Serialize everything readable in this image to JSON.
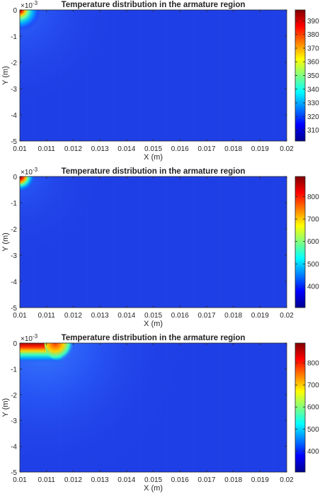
{
  "chart_data": [
    {
      "type": "heatmap",
      "title": "Temperature distribution in the armature region",
      "xlabel": "X (m)",
      "ylabel": "Y (m)",
      "y_exponent": "×10",
      "y_exponent_power": "-3",
      "xlim": [
        0.01,
        0.02
      ],
      "ylim": [
        -5,
        0
      ],
      "x_ticks": [
        "0.01",
        "0.011",
        "0.012",
        "0.013",
        "0.014",
        "0.015",
        "0.016",
        "0.017",
        "0.018",
        "0.019",
        "0.02"
      ],
      "y_ticks": [
        "0",
        "-1",
        "-2",
        "-3",
        "-4",
        "-5"
      ],
      "colorbar": {
        "range": [
          302,
          398
        ],
        "ticks": [
          "310",
          "320",
          "330",
          "340",
          "350",
          "360",
          "370",
          "380",
          "390"
        ],
        "tick_values": [
          310,
          320,
          330,
          340,
          350,
          360,
          370,
          380,
          390
        ]
      },
      "hotspot": {
        "x": 0.01,
        "y": 0,
        "max_temperature": 398,
        "x_extent": 0.0003,
        "y_extent": 0.6
      },
      "colormap": "jet"
    },
    {
      "type": "heatmap",
      "title": "Temperature distribution in the armature region",
      "xlabel": "X (m)",
      "ylabel": "Y (m)",
      "y_exponent": "×10",
      "y_exponent_power": "-3",
      "xlim": [
        0.01,
        0.02
      ],
      "ylim": [
        -5,
        0
      ],
      "x_ticks": [
        "0.01",
        "0.011",
        "0.012",
        "0.013",
        "0.014",
        "0.015",
        "0.016",
        "0.017",
        "0.018",
        "0.019",
        "0.02"
      ],
      "y_ticks": [
        "0",
        "-1",
        "-2",
        "-3",
        "-4",
        "-5"
      ],
      "colorbar": {
        "range": [
          305,
          890
        ],
        "ticks": [
          "400",
          "500",
          "600",
          "700",
          "800"
        ],
        "tick_values": [
          400,
          500,
          600,
          700,
          800
        ]
      },
      "hotspot": {
        "x": 0.01,
        "y": 0,
        "max_temperature": 890,
        "x_extent": 0.0003,
        "y_extent": 0.45
      },
      "colormap": "jet"
    },
    {
      "type": "heatmap",
      "title": "Temperature distribution in the armature region",
      "xlabel": "X (m)",
      "ylabel": "Y (m)",
      "y_exponent": "×10",
      "y_exponent_power": "-3",
      "xlim": [
        0.01,
        0.02
      ],
      "ylim": [
        -5,
        0
      ],
      "x_ticks": [
        "0.01",
        "0.011",
        "0.012",
        "0.013",
        "0.014",
        "0.015",
        "0.016",
        "0.017",
        "0.018",
        "0.019",
        "0.02"
      ],
      "y_ticks": [
        "0",
        "-1",
        "-2",
        "-3",
        "-4",
        "-5"
      ],
      "colorbar": {
        "range": [
          305,
          890
        ],
        "ticks": [
          "400",
          "500",
          "600",
          "700",
          "800"
        ],
        "tick_values": [
          400,
          500,
          600,
          700,
          800
        ]
      },
      "hotspot": {
        "x": 0.0113,
        "y": 0,
        "max_temperature": 890,
        "x_extent": 0.0017,
        "y_extent": 0.6
      },
      "colormap": "jet"
    }
  ]
}
